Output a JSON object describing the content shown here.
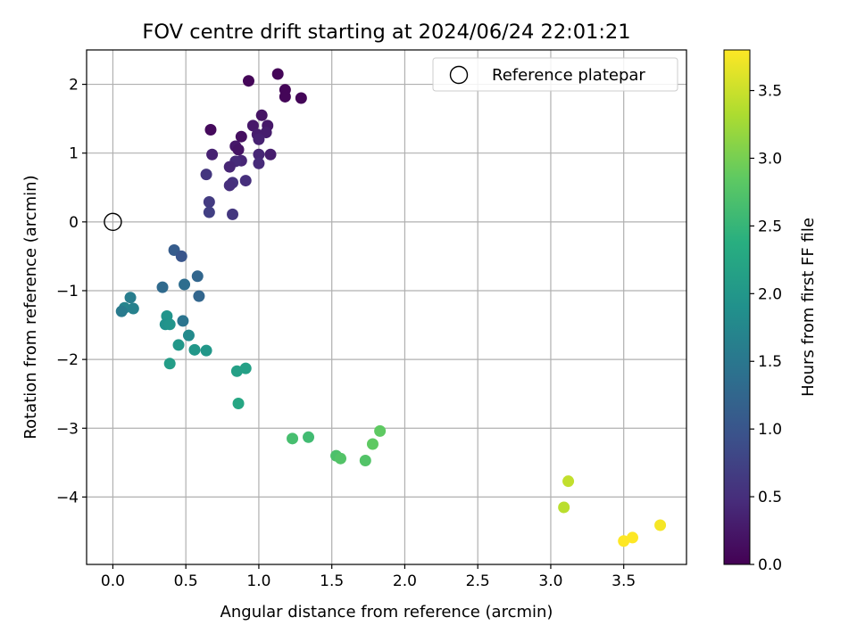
{
  "chart_data": {
    "type": "scatter",
    "title": "FOV centre drift starting at 2024/06/24 22:01:21",
    "xlabel": "Angular distance from reference (arcmin)",
    "ylabel": "Rotation from reference (arcmin)",
    "xlim": [
      -0.18,
      3.93
    ],
    "ylim": [
      -4.98,
      2.5
    ],
    "xticks": [
      "0.0",
      "0.5",
      "1.0",
      "1.5",
      "2.0",
      "2.5",
      "3.0",
      "3.5"
    ],
    "xtick_values": [
      0,
      0.5,
      1,
      1.5,
      2,
      2.5,
      3,
      3.5
    ],
    "yticks": [
      "−4",
      "−3",
      "−2",
      "−1",
      "0",
      "1",
      "2"
    ],
    "ytick_values": [
      -4,
      -3,
      -2,
      -1,
      0,
      1,
      2
    ],
    "grid": true,
    "legend": {
      "position": "top-right",
      "entries": [
        "Reference platepar"
      ]
    },
    "reference_point": {
      "x": 0,
      "y": 0,
      "label": "Reference platepar"
    },
    "colorbar": {
      "label": "Hours from first FF file",
      "range": [
        0,
        3.8
      ],
      "ticks": [
        "0.0",
        "0.5",
        "1.0",
        "1.5",
        "2.0",
        "2.5",
        "3.0",
        "3.5"
      ],
      "tick_values": [
        0,
        0.5,
        1,
        1.5,
        2,
        2.5,
        3,
        3.5
      ],
      "colormap": "viridis"
    },
    "points": [
      {
        "x": 0.93,
        "y": 2.05,
        "h": 0.05
      },
      {
        "x": 1.13,
        "y": 2.15,
        "h": 0.05
      },
      {
        "x": 1.18,
        "y": 1.92,
        "h": 0.05
      },
      {
        "x": 1.18,
        "y": 1.82,
        "h": 0.05
      },
      {
        "x": 1.29,
        "y": 1.8,
        "h": 0.05
      },
      {
        "x": 0.67,
        "y": 1.34,
        "h": 0.1
      },
      {
        "x": 0.88,
        "y": 1.24,
        "h": 0.15
      },
      {
        "x": 1.02,
        "y": 1.55,
        "h": 0.2
      },
      {
        "x": 0.96,
        "y": 1.4,
        "h": 0.25
      },
      {
        "x": 1.06,
        "y": 1.4,
        "h": 0.25
      },
      {
        "x": 1.05,
        "y": 1.3,
        "h": 0.3
      },
      {
        "x": 0.99,
        "y": 1.27,
        "h": 0.3
      },
      {
        "x": 1.0,
        "y": 1.2,
        "h": 0.35
      },
      {
        "x": 0.84,
        "y": 1.1,
        "h": 0.25
      },
      {
        "x": 0.86,
        "y": 1.05,
        "h": 0.2
      },
      {
        "x": 0.68,
        "y": 0.98,
        "h": 0.35
      },
      {
        "x": 1.0,
        "y": 0.98,
        "h": 0.4
      },
      {
        "x": 1.08,
        "y": 0.98,
        "h": 0.3
      },
      {
        "x": 0.88,
        "y": 0.89,
        "h": 0.4
      },
      {
        "x": 0.84,
        "y": 0.88,
        "h": 0.45
      },
      {
        "x": 0.8,
        "y": 0.8,
        "h": 0.4
      },
      {
        "x": 1.0,
        "y": 0.85,
        "h": 0.45
      },
      {
        "x": 0.64,
        "y": 0.69,
        "h": 0.6
      },
      {
        "x": 0.91,
        "y": 0.6,
        "h": 0.5
      },
      {
        "x": 0.82,
        "y": 0.57,
        "h": 0.55
      },
      {
        "x": 0.8,
        "y": 0.53,
        "h": 0.5
      },
      {
        "x": 0.66,
        "y": 0.29,
        "h": 0.65
      },
      {
        "x": 0.66,
        "y": 0.14,
        "h": 0.7
      },
      {
        "x": 0.82,
        "y": 0.11,
        "h": 0.6
      },
      {
        "x": 0.42,
        "y": -0.41,
        "h": 1.1
      },
      {
        "x": 0.47,
        "y": -0.5,
        "h": 1.0
      },
      {
        "x": 0.58,
        "y": -0.79,
        "h": 1.25
      },
      {
        "x": 0.34,
        "y": -0.95,
        "h": 1.3
      },
      {
        "x": 0.49,
        "y": -0.91,
        "h": 1.35
      },
      {
        "x": 0.59,
        "y": -1.08,
        "h": 1.25
      },
      {
        "x": 0.12,
        "y": -1.1,
        "h": 1.6
      },
      {
        "x": 0.08,
        "y": -1.25,
        "h": 1.7
      },
      {
        "x": 0.14,
        "y": -1.26,
        "h": 1.65
      },
      {
        "x": 0.06,
        "y": -1.3,
        "h": 1.55
      },
      {
        "x": 0.37,
        "y": -1.37,
        "h": 1.95
      },
      {
        "x": 0.48,
        "y": -1.44,
        "h": 1.45
      },
      {
        "x": 0.36,
        "y": -1.49,
        "h": 1.9
      },
      {
        "x": 0.39,
        "y": -1.49,
        "h": 1.95
      },
      {
        "x": 0.52,
        "y": -1.65,
        "h": 1.8
      },
      {
        "x": 0.45,
        "y": -1.79,
        "h": 2.0
      },
      {
        "x": 0.56,
        "y": -1.86,
        "h": 2.0
      },
      {
        "x": 0.64,
        "y": -1.87,
        "h": 2.0
      },
      {
        "x": 0.39,
        "y": -2.06,
        "h": 2.1
      },
      {
        "x": 0.85,
        "y": -2.17,
        "h": 2.15
      },
      {
        "x": 0.91,
        "y": -2.13,
        "h": 2.15
      },
      {
        "x": 0.86,
        "y": -2.64,
        "h": 2.25
      },
      {
        "x": 1.23,
        "y": -3.15,
        "h": 2.65
      },
      {
        "x": 1.34,
        "y": -3.13,
        "h": 2.6
      },
      {
        "x": 1.53,
        "y": -3.4,
        "h": 2.7
      },
      {
        "x": 1.56,
        "y": -3.44,
        "h": 2.75
      },
      {
        "x": 1.73,
        "y": -3.47,
        "h": 2.75
      },
      {
        "x": 1.78,
        "y": -3.23,
        "h": 2.85
      },
      {
        "x": 1.83,
        "y": -3.04,
        "h": 2.85
      },
      {
        "x": 3.12,
        "y": -3.77,
        "h": 3.45
      },
      {
        "x": 3.09,
        "y": -4.15,
        "h": 3.4
      },
      {
        "x": 3.5,
        "y": -4.64,
        "h": 3.8
      },
      {
        "x": 3.56,
        "y": -4.59,
        "h": 3.8
      },
      {
        "x": 3.75,
        "y": -4.41,
        "h": 3.75
      }
    ]
  }
}
